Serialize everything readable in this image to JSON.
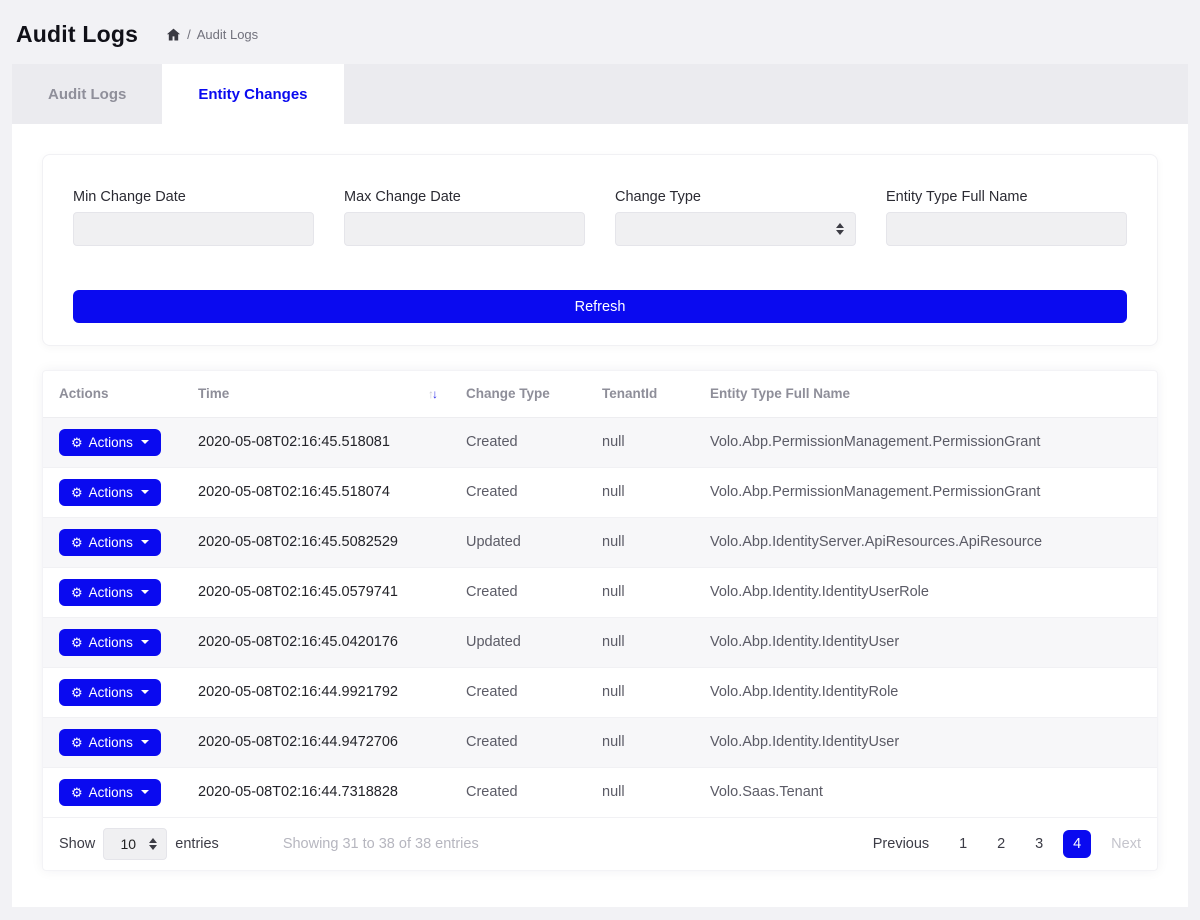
{
  "colors": {
    "primary": "#0a0af0"
  },
  "header": {
    "title": "Audit Logs",
    "breadcrumb": {
      "separator": "/",
      "current": "Audit Logs"
    }
  },
  "tabs": [
    {
      "label": "Audit Logs",
      "active": false
    },
    {
      "label": "Entity Changes",
      "active": true
    }
  ],
  "filters": {
    "min_change_date": {
      "label": "Min Change Date",
      "value": ""
    },
    "max_change_date": {
      "label": "Max Change Date",
      "value": ""
    },
    "change_type": {
      "label": "Change Type",
      "selected": ""
    },
    "entity_type_full_name": {
      "label": "Entity Type Full Name",
      "value": ""
    },
    "refresh_label": "Refresh"
  },
  "table": {
    "columns": {
      "actions": "Actions",
      "time": "Time",
      "change_type": "Change Type",
      "tenant_id": "TenantId",
      "entity": "Entity Type Full Name"
    },
    "sort": {
      "column": "Time",
      "direction": "desc"
    },
    "action_button_label": "Actions",
    "rows": [
      {
        "time": "2020-05-08T02:16:45.518081",
        "change_type": "Created",
        "tenant_id": "null",
        "entity": "Volo.Abp.PermissionManagement.PermissionGrant"
      },
      {
        "time": "2020-05-08T02:16:45.518074",
        "change_type": "Created",
        "tenant_id": "null",
        "entity": "Volo.Abp.PermissionManagement.PermissionGrant"
      },
      {
        "time": "2020-05-08T02:16:45.5082529",
        "change_type": "Updated",
        "tenant_id": "null",
        "entity": "Volo.Abp.IdentityServer.ApiResources.ApiResource"
      },
      {
        "time": "2020-05-08T02:16:45.0579741",
        "change_type": "Created",
        "tenant_id": "null",
        "entity": "Volo.Abp.Identity.IdentityUserRole"
      },
      {
        "time": "2020-05-08T02:16:45.0420176",
        "change_type": "Updated",
        "tenant_id": "null",
        "entity": "Volo.Abp.Identity.IdentityUser"
      },
      {
        "time": "2020-05-08T02:16:44.9921792",
        "change_type": "Created",
        "tenant_id": "null",
        "entity": "Volo.Abp.Identity.IdentityRole"
      },
      {
        "time": "2020-05-08T02:16:44.9472706",
        "change_type": "Created",
        "tenant_id": "null",
        "entity": "Volo.Abp.Identity.IdentityUser"
      },
      {
        "time": "2020-05-08T02:16:44.7318828",
        "change_type": "Created",
        "tenant_id": "null",
        "entity": "Volo.Saas.Tenant"
      }
    ],
    "footer": {
      "show_label": "Show",
      "page_size": "10",
      "entries_label": "entries",
      "info": "Showing 31 to 38 of 38 entries",
      "pagination": {
        "previous": "Previous",
        "pages": [
          "1",
          "2",
          "3",
          "4"
        ],
        "active": "4",
        "next": "Next"
      }
    }
  }
}
